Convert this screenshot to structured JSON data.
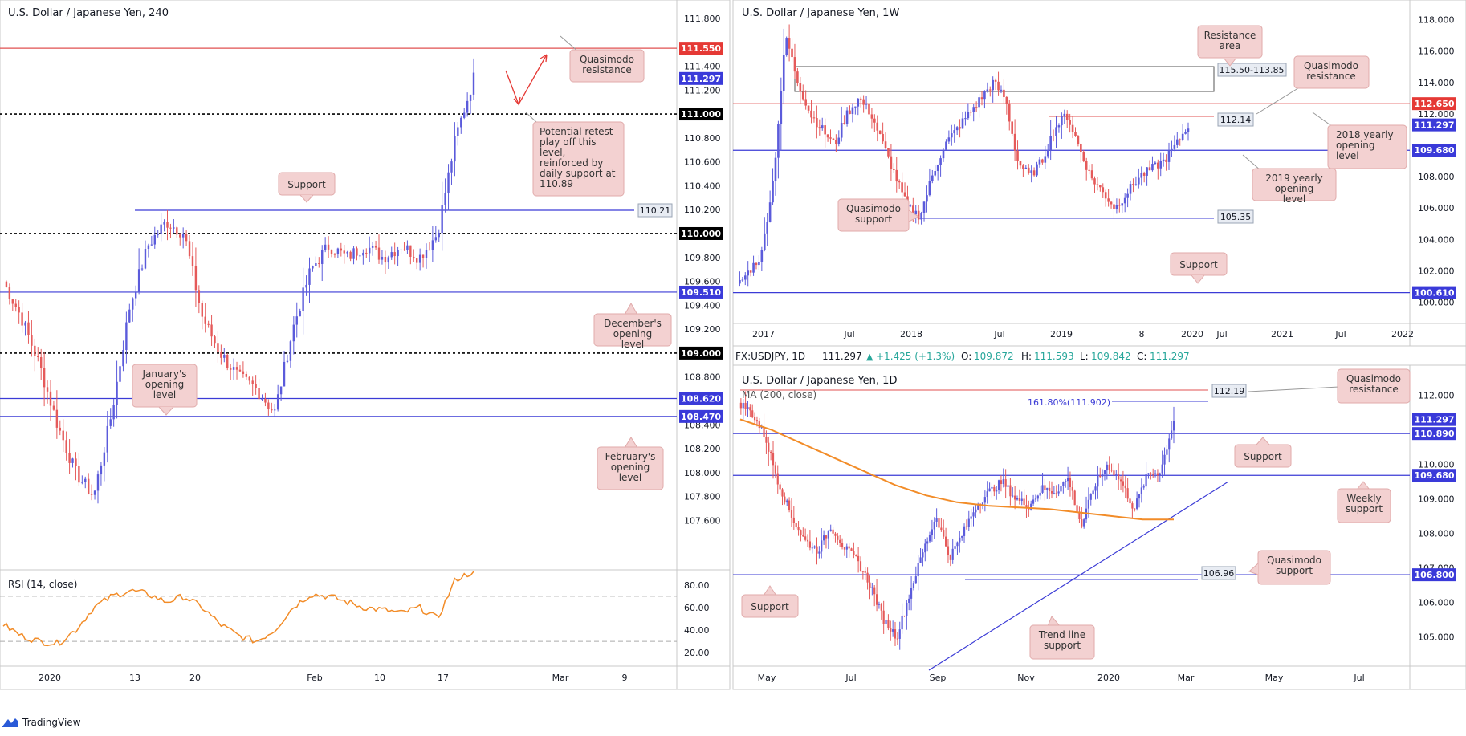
{
  "branding": {
    "name": "TradingView",
    "logo": "tradingview-logo-icon"
  },
  "colors": {
    "up": "#5b5bdb",
    "down": "#e55a5a",
    "blue_line": "#3b3bd6",
    "red_line": "#e05050",
    "orange": "#f28c28",
    "badge_red": "#e53935",
    "badge_blue": "#3a3ad9",
    "callout_bg": "#f3d1d1",
    "callout_border": "#e0aaaa"
  },
  "chart_data": [
    {
      "id": "h4",
      "type": "candlestick",
      "title": "U.S. Dollar / Japanese Yen, 240",
      "ylim": [
        107.2,
        111.9
      ],
      "price_ticks": [
        "111.800",
        "111.400",
        "111.200",
        "110.800",
        "110.600",
        "110.400",
        "110.200",
        "109.800",
        "109.600",
        "109.400",
        "109.200",
        "108.800",
        "108.400",
        "108.200",
        "108.000",
        "107.800",
        "107.600"
      ],
      "badges": [
        {
          "value": "111.550",
          "price": 111.55,
          "style": "red"
        },
        {
          "value": "111.297",
          "price": 111.297,
          "style": "blue"
        },
        {
          "value": "111.000",
          "price": 111.0,
          "style": "black"
        },
        {
          "value": "110.000",
          "price": 110.0,
          "style": "black"
        },
        {
          "value": "109.510",
          "price": 109.51,
          "style": "blue"
        },
        {
          "value": "109.000",
          "price": 109.0,
          "style": "black"
        },
        {
          "value": "108.620",
          "price": 108.62,
          "style": "blue"
        },
        {
          "value": "108.470",
          "price": 108.47,
          "style": "blue"
        }
      ],
      "levels": [
        {
          "price": 111.55,
          "style": "red"
        },
        {
          "price": 111.0,
          "style": "dotted"
        },
        {
          "price": 110.0,
          "style": "dotted"
        },
        {
          "price": 109.0,
          "style": "dotted"
        },
        {
          "price": 109.51,
          "style": "blue"
        },
        {
          "price": 108.62,
          "style": "blue"
        },
        {
          "price": 108.47,
          "style": "blue"
        }
      ],
      "small_label": {
        "value": "110.21",
        "price": 110.21
      },
      "x_labels": [
        "2020",
        "13",
        "20",
        "Feb",
        "10",
        "17",
        "Mar",
        "9"
      ],
      "callouts": [
        {
          "text": "Quasimodo resistance"
        },
        {
          "text": "Potential retest play off this level, reinforced by daily support at 110.89"
        },
        {
          "text": "Support"
        },
        {
          "text": "December's opening level"
        },
        {
          "text": "January's opening level"
        },
        {
          "text": "February's opening level"
        }
      ],
      "rsi": {
        "label": "RSI (14, close)",
        "ticks": [
          "80.00",
          "60.00",
          "40.00",
          "20.00"
        ],
        "bands": [
          70,
          30
        ]
      }
    },
    {
      "id": "weekly",
      "type": "candlestick",
      "title": "U.S. Dollar / Japanese Yen, 1W",
      "ylim": [
        98.8,
        119.0
      ],
      "price_ticks": [
        "118.000",
        "116.000",
        "114.000",
        "112.000",
        "108.000",
        "106.000",
        "104.000",
        "102.000",
        "100.000"
      ],
      "badges": [
        {
          "value": "112.650",
          "price": 112.65,
          "style": "red"
        },
        {
          "value": "111.297",
          "price": 111.297,
          "style": "blue"
        },
        {
          "value": "109.680",
          "price": 109.68,
          "style": "blue"
        },
        {
          "value": "100.610",
          "price": 100.61,
          "style": "blue"
        }
      ],
      "x_labels": [
        "2017",
        "Jul",
        "2018",
        "Jul",
        "2019",
        "8",
        "2020",
        "Jul",
        "2021",
        "Jul",
        "2022"
      ],
      "small_labels": [
        {
          "value": "115.50-113.85"
        },
        {
          "value": "112.14"
        },
        {
          "value": "105.35"
        }
      ],
      "callouts": [
        {
          "text": "Resistance area"
        },
        {
          "text": "Quasimodo resistance"
        },
        {
          "text": "2018 yearly opening level"
        },
        {
          "text": "2019 yearly opening level"
        },
        {
          "text": "Quasimodo support"
        },
        {
          "text": "Support"
        }
      ]
    },
    {
      "id": "daily",
      "type": "candlestick",
      "title": "U.S. Dollar / Japanese Yen, 1D",
      "ylim": [
        104.2,
        112.8
      ],
      "ohlc_header": {
        "symbol": "FX:USDJPY, 1D",
        "last": "111.297",
        "change": "+1.425 (+1.3%)",
        "o_label": "O:",
        "o": "109.872",
        "h_label": "H:",
        "h": "111.593",
        "l_label": "L:",
        "l": "109.842",
        "c_label": "C:",
        "c": "111.297"
      },
      "ma_label": "MA (200, close)",
      "fib_label": "161.80%(111.902)",
      "price_ticks": [
        "112.000",
        "110.000",
        "109.000",
        "108.000",
        "107.000",
        "106.000",
        "105.000"
      ],
      "badges": [
        {
          "value": "111.297",
          "price": 111.297,
          "style": "blue"
        },
        {
          "value": "110.890",
          "price": 110.89,
          "style": "blue"
        },
        {
          "value": "109.680",
          "price": 109.68,
          "style": "blue"
        },
        {
          "value": "106.800",
          "price": 106.8,
          "style": "blue"
        }
      ],
      "small_labels": [
        {
          "value": "112.19"
        },
        {
          "value": "106.96"
        }
      ],
      "x_labels": [
        "May",
        "Jul",
        "Sep",
        "Nov",
        "2020",
        "Mar",
        "May",
        "Jul"
      ],
      "callouts": [
        {
          "text": "Quasimodo resistance"
        },
        {
          "text": "Support"
        },
        {
          "text": "Weekly support"
        },
        {
          "text": "Quasimodo support"
        },
        {
          "text": "Support"
        },
        {
          "text": "Trend line support"
        }
      ]
    }
  ]
}
